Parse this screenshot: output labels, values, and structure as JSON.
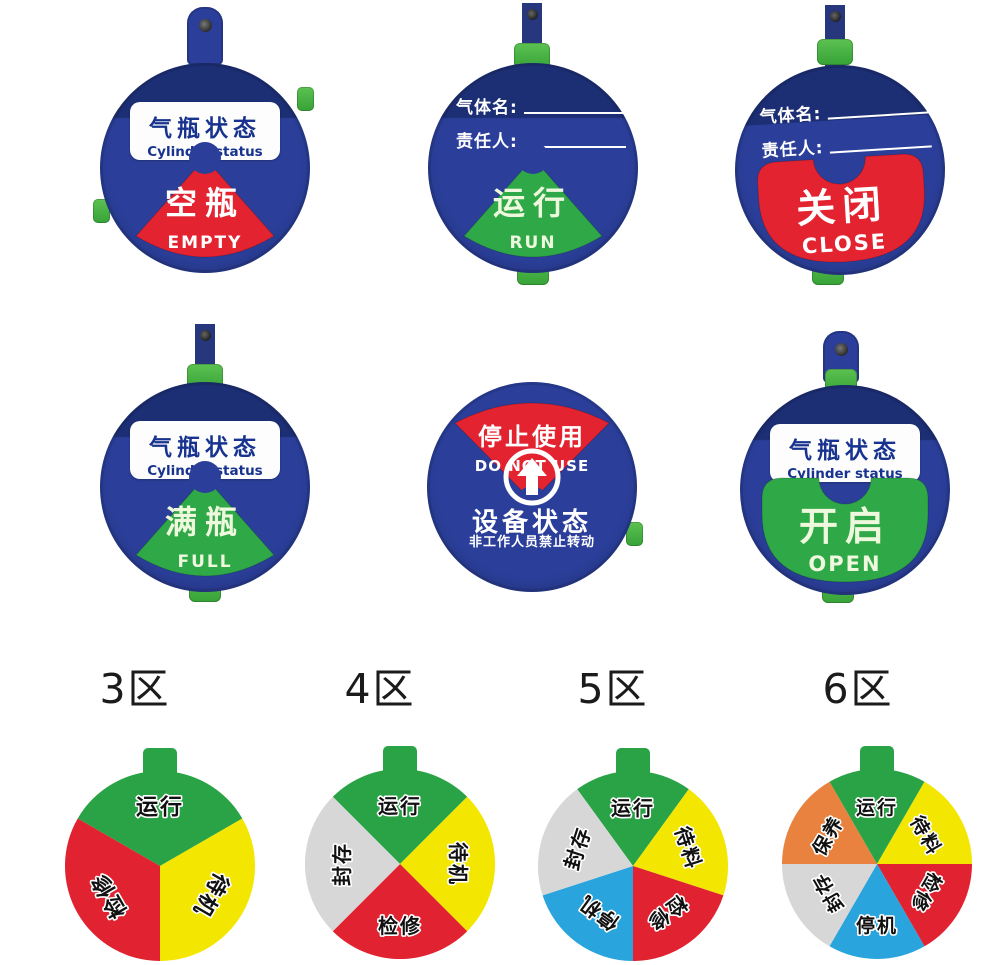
{
  "tags": [
    {
      "name": "empty",
      "plate_zh": "气瓶状态",
      "plate_en": "Cylinder status",
      "window_zh": "空瓶",
      "window_en": "EMPTY",
      "window_color": "#e32330"
    },
    {
      "name": "run",
      "field1": "气体名:",
      "field2": "责任人:",
      "window_zh": "运行",
      "window_en": "RUN",
      "window_color": "#2fa848"
    },
    {
      "name": "close",
      "field1": "气体名:",
      "field2": "责任人:",
      "window_zh": "关闭",
      "window_en": "CLOSE",
      "window_color": "#e32330"
    },
    {
      "name": "full",
      "plate_zh": "气瓶状态",
      "plate_en": "Cylinder status",
      "window_zh": "满瓶",
      "window_en": "FULL",
      "window_color": "#2fa848"
    },
    {
      "name": "do-not-use",
      "window_zh": "停止使用",
      "window_en": "DO NOT USE",
      "window_color": "#e32330",
      "center_title": "设备状态",
      "center_note": "非工作人员禁止转动",
      "arrow_icon": "up-arrow-in-circle"
    },
    {
      "name": "open",
      "plate_zh": "气瓶状态",
      "plate_en": "Cylinder status",
      "window_zh": "开启",
      "window_en": "OPEN",
      "window_color": "#2fa848"
    }
  ],
  "zone_labels": [
    "3区",
    "4区",
    "5区",
    "6区"
  ],
  "wheels": [
    {
      "zone": "3区",
      "sectors": [
        {
          "label": "运行",
          "color": "#2aa347"
        },
        {
          "label": "待机",
          "color": "#f3e600"
        },
        {
          "label": "检修",
          "color": "#e02231"
        }
      ]
    },
    {
      "zone": "4区",
      "sectors": [
        {
          "label": "运行",
          "color": "#2aa347"
        },
        {
          "label": "待机",
          "color": "#f3e600"
        },
        {
          "label": "检修",
          "color": "#e02231"
        },
        {
          "label": "封存",
          "color": "#d7d7d7"
        }
      ]
    },
    {
      "zone": "5区",
      "sectors": [
        {
          "label": "运行",
          "color": "#2aa347"
        },
        {
          "label": "待料",
          "color": "#f3e600"
        },
        {
          "label": "检修",
          "color": "#e02231"
        },
        {
          "label": "停机",
          "color": "#29a4dc"
        },
        {
          "label": "封存",
          "color": "#d7d7d7"
        }
      ]
    },
    {
      "zone": "6区",
      "sectors": [
        {
          "label": "运行",
          "color": "#2aa347"
        },
        {
          "label": "待料",
          "color": "#f3e600"
        },
        {
          "label": "检修",
          "color": "#e02231"
        },
        {
          "label": "停机",
          "color": "#29a4dc"
        },
        {
          "label": "封存",
          "color": "#d7d7d7"
        },
        {
          "label": "保养",
          "color": "#e8823e"
        }
      ]
    }
  ],
  "colors": {
    "tag_body": "#2b3f9a",
    "tag_body_dark": "#1d2f74",
    "clip_green": "#46b646",
    "stem_green": "#2aa347",
    "plate_text": "#17338f",
    "status_red": "#e32330",
    "status_green": "#2fa848"
  }
}
